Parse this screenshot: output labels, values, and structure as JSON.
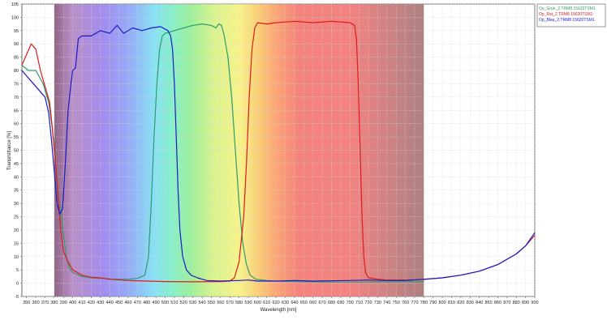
{
  "chart_data": {
    "type": "line",
    "title": "",
    "xlabel": "Wavelength [nm]",
    "ylabel": "Transmittance [%]",
    "xlim": [
      345,
      900
    ],
    "ylim": [
      -5,
      105
    ],
    "x_ticks": [
      350,
      360,
      370,
      380,
      390,
      400,
      410,
      420,
      430,
      440,
      450,
      460,
      470,
      480,
      490,
      500,
      510,
      520,
      530,
      540,
      550,
      560,
      570,
      580,
      590,
      600,
      610,
      620,
      630,
      640,
      650,
      660,
      670,
      680,
      690,
      700,
      710,
      720,
      730,
      740,
      750,
      760,
      770,
      780,
      790,
      800,
      810,
      820,
      830,
      840,
      850,
      860,
      870,
      880,
      890,
      900
    ],
    "y_ticks": [
      -5,
      0,
      5,
      10,
      15,
      20,
      25,
      30,
      35,
      40,
      45,
      50,
      55,
      60,
      65,
      70,
      75,
      80,
      85,
      90,
      95,
      100,
      105
    ],
    "grid": true,
    "spectrum_band": [
      380,
      780
    ],
    "legend_position": "top-right, outside plot",
    "series": [
      {
        "name": "Op_Grün_2.TRM8 15620TSM1",
        "color": "#2e9c6e",
        "points": [
          [
            345,
            82
          ],
          [
            352,
            80
          ],
          [
            360,
            80
          ],
          [
            368,
            75
          ],
          [
            374,
            68
          ],
          [
            378,
            58
          ],
          [
            381,
            46
          ],
          [
            384,
            32
          ],
          [
            387,
            28
          ],
          [
            390,
            18
          ],
          [
            393,
            10
          ],
          [
            396,
            6
          ],
          [
            400,
            4
          ],
          [
            410,
            2.5
          ],
          [
            420,
            2
          ],
          [
            430,
            1.8
          ],
          [
            440,
            1.6
          ],
          [
            450,
            1.5
          ],
          [
            460,
            1.5
          ],
          [
            470,
            1.8
          ],
          [
            478,
            3
          ],
          [
            482,
            10
          ],
          [
            485,
            30
          ],
          [
            488,
            55
          ],
          [
            491,
            75
          ],
          [
            494,
            88
          ],
          [
            497,
            93
          ],
          [
            500,
            94
          ],
          [
            510,
            95
          ],
          [
            520,
            96
          ],
          [
            530,
            97
          ],
          [
            540,
            97.5
          ],
          [
            550,
            97
          ],
          [
            555,
            96
          ],
          [
            558,
            97.5
          ],
          [
            561,
            97
          ],
          [
            564,
            93
          ],
          [
            568,
            85
          ],
          [
            572,
            70
          ],
          [
            576,
            50
          ],
          [
            580,
            30
          ],
          [
            584,
            15
          ],
          [
            588,
            7
          ],
          [
            592,
            3
          ],
          [
            598,
            1.5
          ],
          [
            610,
            1
          ],
          [
            620,
            0.8
          ],
          [
            650,
            0.5
          ],
          [
            700,
            0.4
          ],
          [
            750,
            0.5
          ],
          [
            780,
            0.6
          ]
        ]
      },
      {
        "name": "Op_Rot_2.TRM8 15620TSM1",
        "color": "#dd1c1c",
        "points": [
          [
            345,
            82
          ],
          [
            350,
            86
          ],
          [
            355,
            90
          ],
          [
            360,
            88
          ],
          [
            365,
            80
          ],
          [
            370,
            74
          ],
          [
            375,
            68
          ],
          [
            378,
            58
          ],
          [
            381,
            46
          ],
          [
            384,
            34
          ],
          [
            387,
            20
          ],
          [
            390,
            12
          ],
          [
            395,
            8
          ],
          [
            400,
            5
          ],
          [
            410,
            3
          ],
          [
            420,
            2.2
          ],
          [
            430,
            2
          ],
          [
            440,
            1.5
          ],
          [
            460,
            1
          ],
          [
            480,
            0.8
          ],
          [
            500,
            0.6
          ],
          [
            530,
            0.5
          ],
          [
            560,
            0.6
          ],
          [
            570,
            0.8
          ],
          [
            575,
            2
          ],
          [
            580,
            8
          ],
          [
            585,
            25
          ],
          [
            588,
            45
          ],
          [
            591,
            70
          ],
          [
            594,
            88
          ],
          [
            597,
            96
          ],
          [
            600,
            98
          ],
          [
            610,
            97.5
          ],
          [
            620,
            98
          ],
          [
            640,
            98.5
          ],
          [
            660,
            98
          ],
          [
            680,
            98.5
          ],
          [
            700,
            98
          ],
          [
            705,
            97
          ],
          [
            707,
            92
          ],
          [
            709,
            75
          ],
          [
            711,
            50
          ],
          [
            713,
            25
          ],
          [
            715,
            10
          ],
          [
            717,
            4
          ],
          [
            720,
            2
          ],
          [
            730,
            1.5
          ],
          [
            740,
            1.2
          ],
          [
            760,
            1.2
          ],
          [
            780,
            1.4
          ],
          [
            800,
            2
          ],
          [
            820,
            3
          ],
          [
            840,
            4.5
          ],
          [
            860,
            7
          ],
          [
            880,
            11
          ],
          [
            890,
            14
          ],
          [
            900,
            18
          ]
        ]
      },
      {
        "name": "Op_Blau_2.TRM8 15620TSM1",
        "color": "#1a1ac8",
        "points": [
          [
            345,
            80
          ],
          [
            350,
            78
          ],
          [
            355,
            76
          ],
          [
            360,
            74
          ],
          [
            365,
            72
          ],
          [
            370,
            70
          ],
          [
            374,
            64
          ],
          [
            377,
            54
          ],
          [
            380,
            42
          ],
          [
            383,
            30
          ],
          [
            386,
            26
          ],
          [
            389,
            28
          ],
          [
            392,
            45
          ],
          [
            395,
            65
          ],
          [
            398,
            75
          ],
          [
            400,
            80
          ],
          [
            403,
            81
          ],
          [
            406,
            92
          ],
          [
            410,
            93
          ],
          [
            420,
            93
          ],
          [
            430,
            95
          ],
          [
            440,
            94
          ],
          [
            448,
            97
          ],
          [
            455,
            94
          ],
          [
            465,
            96
          ],
          [
            475,
            95
          ],
          [
            485,
            96
          ],
          [
            495,
            96.5
          ],
          [
            503,
            95
          ],
          [
            506,
            93
          ],
          [
            508,
            88
          ],
          [
            510,
            75
          ],
          [
            512,
            55
          ],
          [
            514,
            35
          ],
          [
            516,
            20
          ],
          [
            519,
            10
          ],
          [
            523,
            5
          ],
          [
            528,
            3
          ],
          [
            535,
            2
          ],
          [
            545,
            1
          ],
          [
            560,
            0.8
          ],
          [
            580,
            1
          ],
          [
            590,
            1.2
          ],
          [
            600,
            0.8
          ],
          [
            620,
            0.8
          ],
          [
            640,
            1
          ],
          [
            660,
            0.8
          ],
          [
            700,
            1
          ],
          [
            720,
            1.2
          ],
          [
            740,
            1
          ],
          [
            760,
            1
          ],
          [
            780,
            1.5
          ],
          [
            800,
            2
          ],
          [
            820,
            3
          ],
          [
            840,
            4.5
          ],
          [
            860,
            7
          ],
          [
            880,
            11
          ],
          [
            890,
            14
          ],
          [
            900,
            19
          ]
        ]
      }
    ]
  }
}
